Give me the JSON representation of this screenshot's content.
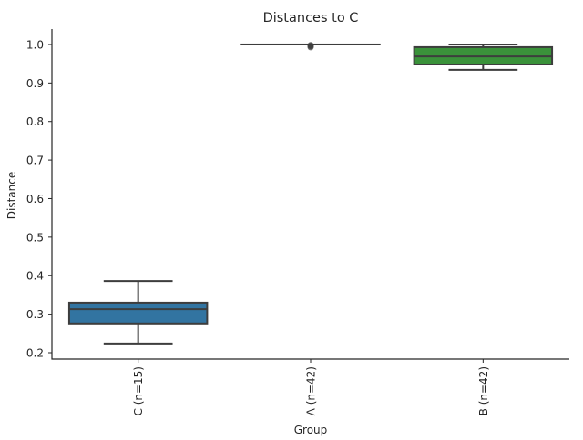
{
  "chart_data": {
    "type": "box",
    "title": "Distances to C",
    "xlabel": "Group",
    "ylabel": "Distance",
    "ylim": [
      0.1835,
      1.04
    ],
    "yticks": [
      0.2,
      0.3,
      0.4,
      0.5,
      0.6,
      0.7,
      0.8,
      0.9,
      1.0
    ],
    "ytick_labels": [
      "0.2",
      "0.3",
      "0.4",
      "0.5",
      "0.6",
      "0.7",
      "0.8",
      "0.9",
      "1.0"
    ],
    "grid": false,
    "categories": [
      "C (n=15)",
      "A (n=42)",
      "B (n=42)"
    ],
    "boxes": [
      {
        "name": "C (n=15)",
        "whislo": 0.224,
        "q1": 0.276,
        "med": 0.313,
        "q3": 0.33,
        "whishi": 0.386,
        "fliers": [],
        "color": "#3274a1"
      },
      {
        "name": "A (n=42)",
        "whislo": 1.0,
        "q1": 1.0,
        "med": 1.0,
        "q3": 1.0,
        "whishi": 1.0,
        "fliers": [
          0.998,
          0.996,
          0.993
        ],
        "color": "#e1812c"
      },
      {
        "name": "B (n=42)",
        "whislo": 0.934,
        "q1": 0.948,
        "med": 0.969,
        "q3": 0.993,
        "whishi": 1.0,
        "fliers": [],
        "color": "#3a923a"
      }
    ]
  }
}
